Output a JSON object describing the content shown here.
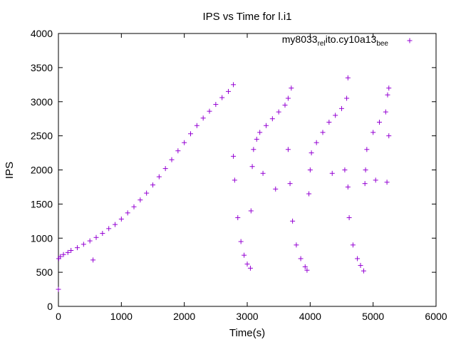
{
  "chart_data": {
    "type": "scatter",
    "title": "IPS vs Time for l.i1",
    "xlabel": "Time(s)",
    "ylabel": "IPS",
    "xlim": [
      0,
      6000
    ],
    "ylim": [
      0,
      4000
    ],
    "xticks": [
      "0",
      "1000",
      "2000",
      "3000",
      "4000",
      "5000",
      "6000"
    ],
    "yticks": [
      "0",
      "500",
      "1000",
      "1500",
      "2000",
      "2500",
      "3000",
      "3500",
      "4000"
    ],
    "grid": false,
    "legend_position": "top-right",
    "marker": "plus",
    "series": [
      {
        "name": "my8033_rel_ito.cy10a13_bee",
        "legend_parts": [
          {
            "text": "my8033",
            "sub": false
          },
          {
            "text": "rel",
            "sub": true
          },
          {
            "text": "ito.cy10a13",
            "sub": false
          },
          {
            "text": "bee",
            "sub": true
          }
        ],
        "color": "#9400d3",
        "points": [
          [
            0,
            250
          ],
          [
            5,
            700
          ],
          [
            30,
            730
          ],
          [
            80,
            760
          ],
          [
            150,
            790
          ],
          [
            200,
            820
          ],
          [
            300,
            860
          ],
          [
            400,
            910
          ],
          [
            500,
            960
          ],
          [
            550,
            680
          ],
          [
            600,
            1010
          ],
          [
            700,
            1070
          ],
          [
            800,
            1140
          ],
          [
            900,
            1200
          ],
          [
            1000,
            1280
          ],
          [
            1100,
            1370
          ],
          [
            1200,
            1460
          ],
          [
            1300,
            1560
          ],
          [
            1400,
            1660
          ],
          [
            1500,
            1780
          ],
          [
            1600,
            1900
          ],
          [
            1700,
            2020
          ],
          [
            1800,
            2150
          ],
          [
            1900,
            2280
          ],
          [
            2000,
            2400
          ],
          [
            2100,
            2530
          ],
          [
            2200,
            2650
          ],
          [
            2300,
            2760
          ],
          [
            2400,
            2860
          ],
          [
            2500,
            2960
          ],
          [
            2600,
            3060
          ],
          [
            2700,
            3150
          ],
          [
            2780,
            3250
          ],
          [
            2780,
            2200
          ],
          [
            2800,
            1850
          ],
          [
            2850,
            1300
          ],
          [
            2900,
            950
          ],
          [
            2950,
            750
          ],
          [
            3000,
            620
          ],
          [
            3050,
            560
          ],
          [
            3060,
            1400
          ],
          [
            3080,
            2050
          ],
          [
            3100,
            2300
          ],
          [
            3150,
            2450
          ],
          [
            3200,
            2550
          ],
          [
            3250,
            1950
          ],
          [
            3300,
            2650
          ],
          [
            3400,
            2750
          ],
          [
            3450,
            1720
          ],
          [
            3500,
            2850
          ],
          [
            3600,
            2950
          ],
          [
            3650,
            3050
          ],
          [
            3700,
            3200
          ],
          [
            3650,
            2300
          ],
          [
            3680,
            1800
          ],
          [
            3720,
            1250
          ],
          [
            3780,
            900
          ],
          [
            3850,
            700
          ],
          [
            3920,
            580
          ],
          [
            3950,
            530
          ],
          [
            3980,
            1650
          ],
          [
            4000,
            2000
          ],
          [
            4020,
            2250
          ],
          [
            4100,
            2400
          ],
          [
            4200,
            2550
          ],
          [
            4300,
            2700
          ],
          [
            4350,
            1950
          ],
          [
            4400,
            2800
          ],
          [
            4500,
            2900
          ],
          [
            4580,
            3050
          ],
          [
            4600,
            3350
          ],
          [
            4550,
            2000
          ],
          [
            4600,
            1750
          ],
          [
            4620,
            1300
          ],
          [
            4680,
            900
          ],
          [
            4750,
            700
          ],
          [
            4800,
            600
          ],
          [
            4850,
            520
          ],
          [
            4870,
            1800
          ],
          [
            4880,
            2000
          ],
          [
            4900,
            2300
          ],
          [
            5000,
            2550
          ],
          [
            5040,
            1850
          ],
          [
            5100,
            2700
          ],
          [
            5200,
            2850
          ],
          [
            5220,
            1820
          ],
          [
            5230,
            3100
          ],
          [
            5250,
            3200
          ],
          [
            5250,
            2500
          ]
        ]
      }
    ]
  }
}
